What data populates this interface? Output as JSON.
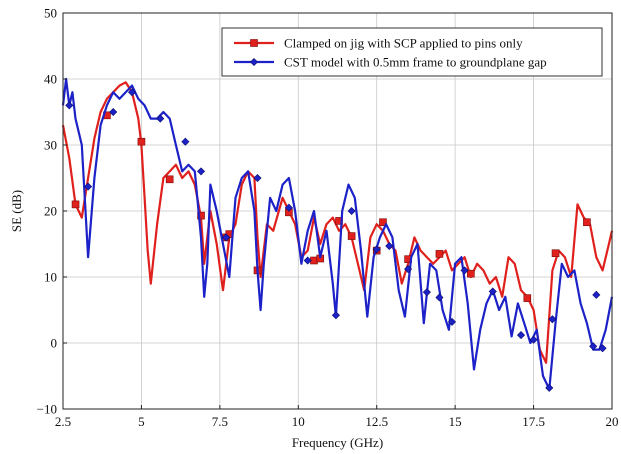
{
  "chart_data": {
    "type": "line",
    "xlabel": "Frequency (GHz)",
    "ylabel": "SE (dB)",
    "xlim": [
      2.5,
      20
    ],
    "ylim": [
      -10,
      50
    ],
    "xticks": [
      2.5,
      5,
      7.5,
      10,
      12.5,
      15,
      17.5,
      20
    ],
    "xtick_labels": [
      "2.5",
      "5",
      "7.5",
      "10",
      "12.5",
      "15",
      "17.5",
      "20"
    ],
    "yticks": [
      -10,
      0,
      10,
      20,
      30,
      40,
      50
    ],
    "ytick_labels": [
      "−10",
      "0",
      "10",
      "20",
      "30",
      "40",
      "50"
    ],
    "grid": true,
    "legend_position": "top-right",
    "series": [
      {
        "name": "Clamped on jig with SCP applied to pins only",
        "color": "#e0201c",
        "marker": "square",
        "x": [
          2.5,
          2.7,
          2.9,
          3.1,
          3.3,
          3.5,
          3.7,
          3.9,
          4.1,
          4.3,
          4.5,
          4.7,
          4.9,
          5.0,
          5.1,
          5.2,
          5.3,
          5.5,
          5.7,
          5.9,
          6.1,
          6.3,
          6.5,
          6.7,
          6.9,
          7.0,
          7.2,
          7.4,
          7.6,
          7.8,
          8.0,
          8.2,
          8.4,
          8.6,
          8.7,
          8.8,
          9.0,
          9.2,
          9.5,
          9.7,
          9.9,
          10.1,
          10.3,
          10.5,
          10.7,
          10.9,
          11.1,
          11.3,
          11.5,
          11.7,
          11.9,
          12.1,
          12.3,
          12.5,
          12.7,
          12.9,
          13.1,
          13.3,
          13.5,
          13.7,
          13.9,
          14.1,
          14.3,
          14.5,
          14.7,
          14.9,
          15.1,
          15.3,
          15.5,
          15.7,
          15.9,
          16.1,
          16.3,
          16.5,
          16.7,
          16.9,
          17.1,
          17.3,
          17.5,
          17.7,
          17.9,
          18.1,
          18.3,
          18.5,
          18.7,
          18.9,
          19.1,
          19.3,
          19.5,
          19.7,
          19.9,
          20.0
        ],
        "y": [
          33,
          28,
          21,
          19,
          25,
          31,
          35,
          37,
          38,
          39,
          39.5,
          38,
          34,
          30,
          22,
          14,
          9,
          18,
          25,
          26,
          27,
          25,
          26,
          24,
          19,
          12,
          20,
          15,
          8,
          16,
          18,
          24,
          26,
          25,
          16,
          10,
          18,
          17,
          22,
          20,
          18,
          13,
          14,
          19,
          15,
          18,
          19,
          17,
          18,
          16,
          12,
          8,
          16,
          18,
          17,
          15,
          14,
          9,
          12,
          16,
          14,
          13,
          12,
          13,
          14,
          11,
          12,
          13,
          10,
          12,
          11,
          9,
          10,
          7,
          13,
          12,
          8,
          7,
          5,
          -1,
          -3,
          11,
          14,
          13,
          10,
          21,
          19,
          18,
          13,
          11,
          15,
          17
        ],
        "marker_points": [
          [
            2.9,
            21
          ],
          [
            3.9,
            34.5
          ],
          [
            5.0,
            30.5
          ],
          [
            5.9,
            24.8
          ],
          [
            6.9,
            19.3
          ],
          [
            7.7,
            16
          ],
          [
            7.8,
            16.5
          ],
          [
            8.7,
            11
          ],
          [
            9.7,
            19.8
          ],
          [
            10.5,
            12.5
          ],
          [
            10.7,
            12.8
          ],
          [
            11.3,
            18.5
          ],
          [
            11.7,
            16.2
          ],
          [
            12.5,
            14
          ],
          [
            12.7,
            18.3
          ],
          [
            13.5,
            12.7
          ],
          [
            14.5,
            13.5
          ],
          [
            15.5,
            10.5
          ],
          [
            17.3,
            6.8
          ],
          [
            18.2,
            13.6
          ],
          [
            19.2,
            18.3
          ]
        ]
      },
      {
        "name": "CST model with 0.5mm frame to groundplane gap",
        "color": "#1c22c8",
        "marker": "diamond",
        "x": [
          2.5,
          2.6,
          2.7,
          2.8,
          2.9,
          3.1,
          3.3,
          3.5,
          3.7,
          3.9,
          4.1,
          4.3,
          4.5,
          4.7,
          4.9,
          5.1,
          5.3,
          5.5,
          5.7,
          5.9,
          6.1,
          6.3,
          6.5,
          6.7,
          6.9,
          7.0,
          7.1,
          7.2,
          7.4,
          7.6,
          7.8,
          8.0,
          8.2,
          8.4,
          8.6,
          8.7,
          8.8,
          8.9,
          9.1,
          9.3,
          9.5,
          9.7,
          9.9,
          10.1,
          10.3,
          10.5,
          10.7,
          10.9,
          11.1,
          11.2,
          11.4,
          11.6,
          11.8,
          12.0,
          12.2,
          12.4,
          12.6,
          12.8,
          13.0,
          13.2,
          13.4,
          13.6,
          13.8,
          14.0,
          14.2,
          14.4,
          14.6,
          14.8,
          15.0,
          15.2,
          15.4,
          15.6,
          15.8,
          16.0,
          16.2,
          16.4,
          16.6,
          16.8,
          17.0,
          17.2,
          17.4,
          17.6,
          17.8,
          18.0,
          18.2,
          18.4,
          18.6,
          18.8,
          19.0,
          19.2,
          19.4,
          19.6,
          19.8,
          20.0
        ],
        "y": [
          36,
          40,
          36,
          38,
          34,
          30,
          13,
          25,
          33,
          36,
          38,
          37,
          38,
          39,
          37,
          36,
          34,
          34,
          35,
          34,
          30,
          26,
          27,
          26,
          16,
          7,
          12,
          24,
          20,
          15,
          10,
          22,
          25,
          26,
          20,
          11,
          5,
          12,
          22,
          20,
          24,
          25,
          20,
          12,
          17,
          20,
          13,
          17,
          9,
          4,
          20,
          24,
          22,
          14,
          4,
          13,
          16,
          18,
          16,
          8,
          4,
          13,
          15,
          3,
          12,
          11,
          5,
          2,
          12,
          13,
          6,
          -4,
          2,
          6,
          8,
          5,
          7,
          1,
          6,
          3,
          0,
          2,
          -5,
          -7,
          3,
          12,
          10,
          11,
          6,
          3,
          -1,
          -1,
          2,
          7
        ],
        "marker_points": [
          [
            2.7,
            36
          ],
          [
            3.3,
            23.7
          ],
          [
            4.1,
            35
          ],
          [
            4.7,
            38
          ],
          [
            5.6,
            34
          ],
          [
            6.4,
            30.5
          ],
          [
            6.9,
            26
          ],
          [
            7.7,
            16
          ],
          [
            8.7,
            25
          ],
          [
            9.7,
            20.5
          ],
          [
            10.3,
            12.5
          ],
          [
            11.2,
            4.2
          ],
          [
            11.7,
            20
          ],
          [
            12.5,
            14.2
          ],
          [
            12.9,
            14.7
          ],
          [
            13.5,
            11.2
          ],
          [
            14.1,
            7.7
          ],
          [
            14.5,
            6.9
          ],
          [
            14.9,
            3.2
          ],
          [
            15.3,
            11
          ],
          [
            16.2,
            7.8
          ],
          [
            17.1,
            1.2
          ],
          [
            17.5,
            0.5
          ],
          [
            18.0,
            -6.8
          ],
          [
            18.1,
            3.6
          ],
          [
            19.4,
            -0.5
          ],
          [
            19.5,
            7.3
          ],
          [
            19.7,
            -0.8
          ]
        ]
      }
    ]
  }
}
